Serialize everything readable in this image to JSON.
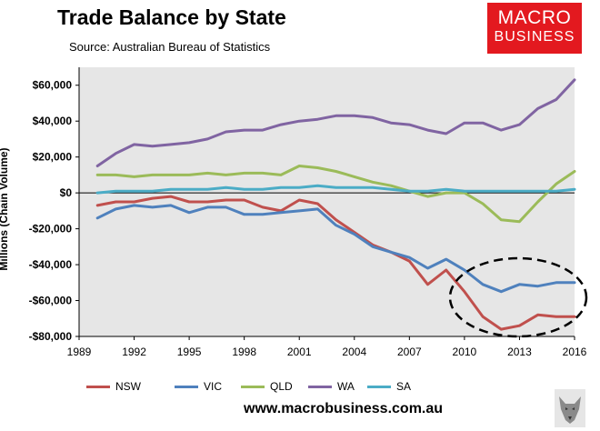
{
  "header": {
    "title": "Trade Balance by State",
    "source": "Source: Australian Bureau of Statistics"
  },
  "logo": {
    "line1": "MACRO",
    "line2": "BUSINESS"
  },
  "footer": {
    "website": "www.macrobusiness.com.au"
  },
  "colors": {
    "NSW": "#c0504d",
    "VIC": "#4f81bd",
    "QLD": "#9bbb59",
    "WA": "#8064a2",
    "SA": "#4bacc6",
    "logo_bg": "#e3191f"
  },
  "chart_data": {
    "type": "line",
    "title": "Trade Balance by State",
    "xlabel": "",
    "ylabel": "Millions (Chain Volume)",
    "xlim": [
      1989,
      2016
    ],
    "ylim": [
      -80000,
      70000
    ],
    "x_ticks": [
      1989,
      1992,
      1995,
      1998,
      2001,
      2004,
      2007,
      2010,
      2013,
      2016
    ],
    "y_ticks": [
      -80000,
      -60000,
      -40000,
      -20000,
      0,
      20000,
      40000,
      60000
    ],
    "y_tick_labels": [
      "-$80,000",
      "-$60,000",
      "-$40,000",
      "-$20,000",
      "$0",
      "$20,000",
      "$40,000",
      "$60,000"
    ],
    "x": [
      1990,
      1991,
      1992,
      1993,
      1994,
      1995,
      1996,
      1997,
      1998,
      1999,
      2000,
      2001,
      2002,
      2003,
      2004,
      2005,
      2006,
      2007,
      2008,
      2009,
      2010,
      2011,
      2012,
      2013,
      2014,
      2015,
      2016
    ],
    "series": [
      {
        "name": "NSW",
        "values": [
          -7000,
          -5000,
          -5000,
          -3000,
          -2000,
          -5000,
          -5000,
          -4000,
          -4000,
          -8000,
          -10000,
          -4000,
          -6000,
          -15000,
          -22000,
          -29000,
          -33000,
          -38000,
          -51000,
          -43000,
          -55000,
          -69000,
          -76000,
          -74000,
          -68000,
          -69000,
          -69000
        ]
      },
      {
        "name": "VIC",
        "values": [
          -14000,
          -9000,
          -7000,
          -8000,
          -7000,
          -11000,
          -8000,
          -8000,
          -12000,
          -12000,
          -11000,
          -10000,
          -9000,
          -18000,
          -23000,
          -30000,
          -33000,
          -36000,
          -42000,
          -37000,
          -43000,
          -51000,
          -55000,
          -51000,
          -52000,
          -50000,
          -50000
        ]
      },
      {
        "name": "QLD",
        "values": [
          10000,
          10000,
          9000,
          10000,
          10000,
          10000,
          11000,
          10000,
          11000,
          11000,
          10000,
          15000,
          14000,
          12000,
          9000,
          6000,
          4000,
          1000,
          -2000,
          0,
          0,
          -6000,
          -15000,
          -16000,
          -5000,
          5000,
          12000
        ]
      },
      {
        "name": "WA",
        "values": [
          15000,
          22000,
          27000,
          26000,
          27000,
          28000,
          30000,
          34000,
          35000,
          35000,
          38000,
          40000,
          41000,
          43000,
          43000,
          42000,
          39000,
          38000,
          35000,
          33000,
          39000,
          39000,
          35000,
          38000,
          47000,
          52000,
          63000
        ]
      },
      {
        "name": "SA",
        "values": [
          0,
          1000,
          1000,
          1000,
          2000,
          2000,
          2000,
          3000,
          2000,
          2000,
          3000,
          3000,
          4000,
          3000,
          3000,
          3000,
          2000,
          1000,
          1000,
          2000,
          1000,
          1000,
          1000,
          1000,
          1000,
          1000,
          2000
        ]
      }
    ],
    "annotation": "dashed ellipse highlighting NSW and VIC after 2010",
    "legend_position": "bottom"
  }
}
